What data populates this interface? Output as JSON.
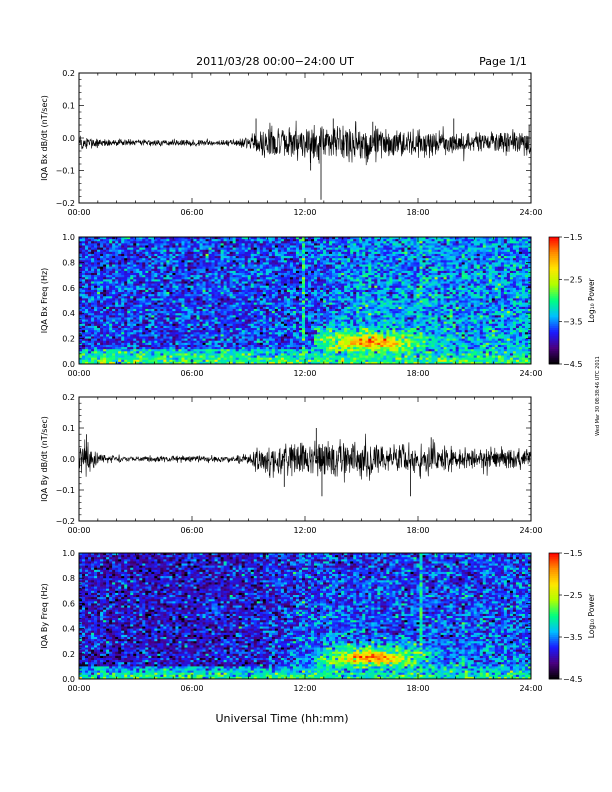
{
  "header": {
    "title": "2011/03/28  00:00−24:00 UT",
    "page_label": "Page 1/1"
  },
  "footer": {
    "xlabel": "Universal Time (hh:mm)",
    "side_note": "Wed Mar 30 08:38:46 UTC 2011"
  },
  "colors": {
    "trace": "#000000",
    "colormap": [
      "#000000",
      "#4a0080",
      "#1a1aff",
      "#00bfff",
      "#00ff7f",
      "#b0ff00",
      "#ffe600",
      "#ff8c00",
      "#ff0000"
    ]
  },
  "chart_data": [
    {
      "type": "line",
      "ylabel": "IQA Bx dB/dt (nT/sec)",
      "ylim": [
        -0.2,
        0.2
      ],
      "yticks": [
        "0.2",
        "0.1",
        "0.0",
        "−0.1",
        "−0.2"
      ],
      "xlim": [
        0,
        24
      ],
      "xticks": [
        "00:00",
        "06:00",
        "12:00",
        "18:00",
        "24:00"
      ],
      "x_units": "hours UT",
      "envelope": {
        "x": [
          0,
          1,
          2,
          4,
          6,
          8,
          9,
          9.5,
          10,
          11,
          12,
          12.8,
          13,
          14,
          15,
          16,
          17,
          18,
          19,
          20,
          21,
          22,
          23,
          24
        ],
        "amplitude": [
          0.03,
          0.015,
          0.01,
          0.01,
          0.01,
          0.01,
          0.018,
          0.04,
          0.05,
          0.055,
          0.05,
          0.06,
          0.055,
          0.06,
          0.055,
          0.05,
          0.045,
          0.04,
          0.04,
          0.035,
          0.035,
          0.035,
          0.035,
          0.04
        ]
      },
      "offset": -0.015,
      "spikes": [
        {
          "x": 12.85,
          "y": -0.19
        },
        {
          "x": 12.3,
          "y": -0.1
        },
        {
          "x": 13.5,
          "y": 0.06
        },
        {
          "x": 15.6,
          "y": 0.05
        },
        {
          "x": 9.4,
          "y": 0.06
        },
        {
          "x": 19.9,
          "y": 0.06
        },
        {
          "x": 23.9,
          "y": 0.04
        }
      ]
    },
    {
      "type": "heatmap",
      "ylabel": "IQA Bx Freq (Hz)",
      "ylim": [
        0.0,
        1.0
      ],
      "yticks": [
        "1.0",
        "0.8",
        "0.6",
        "0.4",
        "0.2",
        "0.0"
      ],
      "xlim": [
        0,
        24
      ],
      "xticks": [
        "00:00",
        "06:00",
        "12:00",
        "18:00",
        "24:00"
      ],
      "colorbar": {
        "label": "Log₁₀ Power",
        "range": [
          -4.5,
          -1.5
        ],
        "ticks": [
          "−1.5",
          "−2.5",
          "−3.5",
          "−4.5"
        ]
      },
      "features": [
        {
          "kind": "background",
          "level": -3.7
        },
        {
          "kind": "low_freq_band",
          "x_range": [
            0,
            24
          ],
          "f_max": 0.12,
          "level": -2.9
        },
        {
          "kind": "broadband_rise",
          "x_range": [
            12,
            24
          ],
          "level": -3.3
        },
        {
          "kind": "pc1_band",
          "x_range": [
            12.5,
            19.5
          ],
          "f_center": 0.17,
          "f_width": 0.07,
          "peak_x": 15.5,
          "level": -1.8
        },
        {
          "kind": "vertical_stripe",
          "x": 11.9,
          "level": -3.1
        },
        {
          "kind": "vertical_stripe",
          "x": 18.2,
          "level": -3.2
        }
      ]
    },
    {
      "type": "line",
      "ylabel": "IQA By dB/dt (nT/sec)",
      "ylim": [
        -0.2,
        0.2
      ],
      "yticks": [
        "0.2",
        "0.1",
        "0.0",
        "−0.1",
        "−0.2"
      ],
      "xlim": [
        0,
        24
      ],
      "xticks": [
        "00:00",
        "06:00",
        "12:00",
        "18:00",
        "24:00"
      ],
      "x_units": "hours UT",
      "envelope": {
        "x": [
          0,
          0.5,
          1,
          2,
          4,
          6,
          8,
          9,
          9.5,
          10,
          11,
          12,
          13,
          14,
          15,
          16,
          17,
          18,
          19,
          20,
          21,
          22,
          23,
          24
        ],
        "amplitude": [
          0.04,
          0.06,
          0.02,
          0.01,
          0.01,
          0.01,
          0.01,
          0.02,
          0.045,
          0.05,
          0.06,
          0.055,
          0.065,
          0.06,
          0.06,
          0.055,
          0.055,
          0.05,
          0.045,
          0.035,
          0.035,
          0.035,
          0.035,
          0.035
        ]
      },
      "offset": 0.0,
      "spikes": [
        {
          "x": 0.4,
          "y": 0.08
        },
        {
          "x": 12.6,
          "y": 0.1
        },
        {
          "x": 12.9,
          "y": -0.12
        },
        {
          "x": 17.6,
          "y": -0.12
        },
        {
          "x": 18.7,
          "y": 0.07
        },
        {
          "x": 10.9,
          "y": -0.09
        }
      ]
    },
    {
      "type": "heatmap",
      "ylabel": "IQA By Freq (Hz)",
      "ylim": [
        0.0,
        1.0
      ],
      "yticks": [
        "1.0",
        "0.8",
        "0.6",
        "0.4",
        "0.2",
        "0.0"
      ],
      "xlim": [
        0,
        24
      ],
      "xticks": [
        "00:00",
        "06:00",
        "12:00",
        "18:00",
        "24:00"
      ],
      "colorbar": {
        "label": "Log₁₀ Power",
        "range": [
          -4.5,
          -1.5
        ],
        "ticks": [
          "−1.5",
          "−2.5",
          "−3.5",
          "−4.5"
        ]
      },
      "features": [
        {
          "kind": "background",
          "level": -3.9
        },
        {
          "kind": "low_freq_band",
          "x_range": [
            0,
            24
          ],
          "f_max": 0.1,
          "level": -3.0
        },
        {
          "kind": "broadband_rise",
          "x_range": [
            9,
            24
          ],
          "level": -3.5
        },
        {
          "kind": "pc1_band",
          "x_range": [
            12.5,
            19.5
          ],
          "f_center": 0.17,
          "f_width": 0.07,
          "peak_x": 15.5,
          "level": -1.8
        },
        {
          "kind": "vertical_stripe",
          "x": 18.2,
          "level": -3.1
        }
      ]
    }
  ]
}
